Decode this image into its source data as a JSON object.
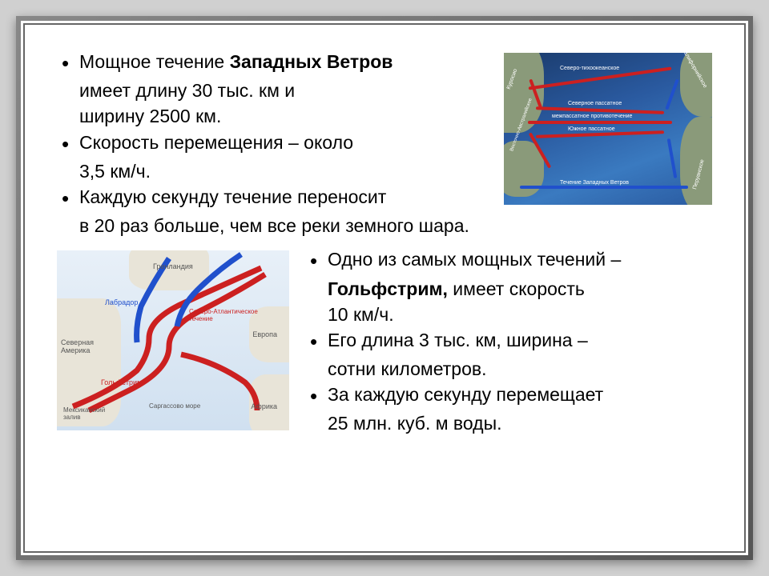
{
  "top": {
    "bullets": [
      {
        "lines": [
          "Мощное течение <b>Западных Ветров</b>",
          "имеет длину 30 тыс. км и",
          "ширину 2500 км."
        ]
      },
      {
        "lines": [
          "Скорость перемещения – около",
          "3,5 км/ч."
        ]
      },
      {
        "lines": [
          "Каждую секунду течение переносит",
          "в 20 раз больше, чем все реки земного шара."
        ]
      }
    ]
  },
  "bottom": {
    "bullets": [
      {
        "lines": [
          "Одно из самых мощных течений –",
          "<b>Гольфстрим,</b> имеет скорость",
          "10 км/ч."
        ]
      },
      {
        "lines": [
          "Его длина 3 тыс. км, ширина –",
          "сотни километров."
        ]
      },
      {
        "lines": [
          "За каждую секунду перемещает",
          "25 млн. куб. м воды."
        ]
      }
    ]
  },
  "map1": {
    "labels": {
      "top": "Северо-тихоокеанское",
      "right": "Калифорнийское",
      "midtop": "Северное пассатное",
      "mid": "межпассатное противотечение",
      "midbot": "Южное пассатное",
      "bottom": "Течение Западных Ветров",
      "leftmid": "Куросио",
      "leftbot": "Восточно-Австралийское",
      "rightbot": "Перуанское"
    },
    "colors": {
      "bg_top": "#1a3a6a",
      "bg_bot": "#2a5aa0",
      "warm": "#cc2020",
      "cold": "#2050cc",
      "land": "#8a9a7a"
    }
  },
  "map2": {
    "labels": {
      "greenland": "Гренландия",
      "labrador": "Лабрадор",
      "natl": "Северо-Атлантическое течение",
      "namerica": "Северная Америка",
      "gulfstream": "Гольфстрим",
      "europe": "Европа",
      "gulf": "Мексиканский залив",
      "sargasso": "Саргассово море",
      "africa": "Африка"
    },
    "colors": {
      "bg": "#d8e8f5",
      "warm": "#cc2020",
      "cold": "#2050cc",
      "land": "#e8e4d8"
    }
  },
  "style": {
    "body_fontsize": 23,
    "text_color": "#000000",
    "frame_border": "#666666",
    "page_bg": "#ffffff"
  }
}
